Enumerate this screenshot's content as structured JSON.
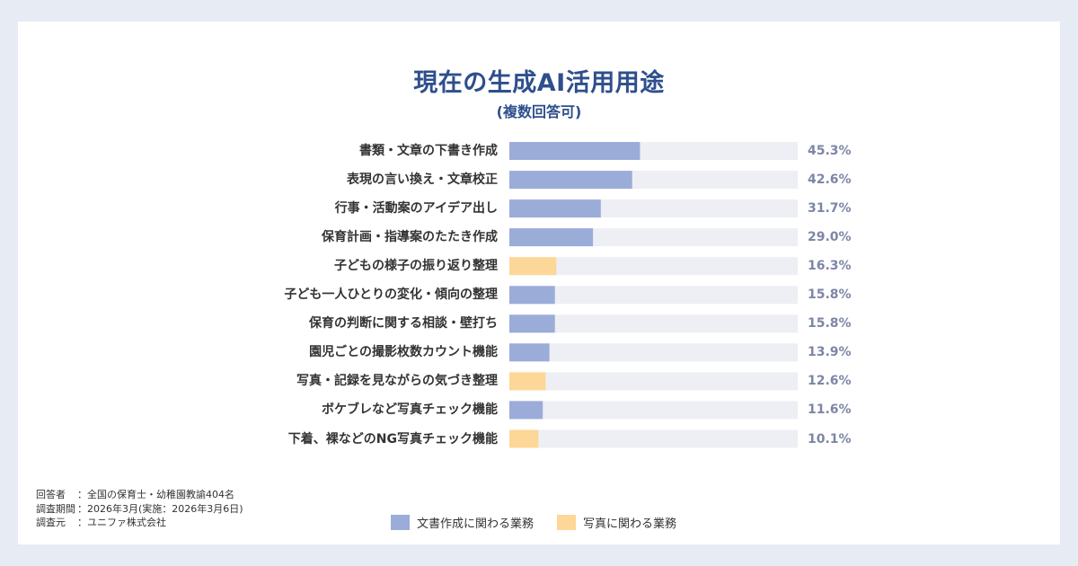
{
  "chart_data": {
    "type": "bar",
    "orientation": "horizontal",
    "title": "現在の生成AI活用用途",
    "subtitle": "(複数回答可)",
    "xlim": [
      0,
      100
    ],
    "value_suffix": "%",
    "categories": [
      "書類・文章の下書き作成",
      "表現の言い換え・文章校正",
      "行事・活動案のアイデア出し",
      "保育計画・指導案のたたき作成",
      "子どもの様子の振り返り整理",
      "子ども一人ひとりの変化・傾向の整理",
      "保育の判断に関する相談・壁打ち",
      "園児ごとの撮影枚数カウント機能",
      "写真・記録を見ながらの気づき整理",
      "ボケブレなど写真チェック機能",
      "下着、裸などのNG写真チェック機能"
    ],
    "values": [
      45.3,
      42.6,
      31.7,
      29.0,
      16.3,
      15.8,
      15.8,
      13.9,
      12.6,
      11.6,
      10.1
    ],
    "value_labels": [
      "45.3%",
      "42.6%",
      "31.7%",
      "29.0%",
      "16.3%",
      "15.8%",
      "15.8%",
      "13.9%",
      "12.6%",
      "11.6%",
      "10.1%"
    ],
    "groups": [
      "document",
      "document",
      "document",
      "document",
      "photo",
      "document",
      "document",
      "document",
      "photo",
      "document",
      "photo"
    ],
    "legend": [
      {
        "key": "document",
        "label": "文書作成に関わる業務",
        "color": "#9bacd9"
      },
      {
        "key": "photo",
        "label": "写真に関わる業務",
        "color": "#fdd797"
      }
    ],
    "track_color": "#eeeff4",
    "legend_position": "bottom-center"
  },
  "notes": [
    {
      "key": "回答者",
      "value": "：全国の保育士・幼稚園教諭404名"
    },
    {
      "key": "調査期間",
      "value": "：2026年3月(実施：2026年3月6日)"
    },
    {
      "key": "調査元",
      "value": "：ユニファ株式会社"
    }
  ]
}
